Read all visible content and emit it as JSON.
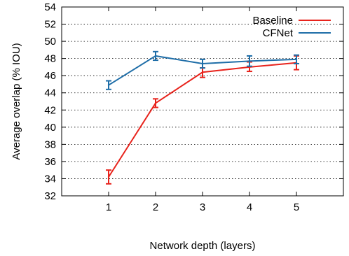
{
  "chart_data": {
    "type": "line",
    "title": "",
    "xlabel": "Network depth (layers)",
    "ylabel": "Average overlap (% IOU)",
    "x": [
      1,
      2,
      3,
      4,
      5
    ],
    "xlim": [
      0,
      6
    ],
    "ylim": [
      32,
      54
    ],
    "yticks": [
      32,
      34,
      36,
      38,
      40,
      42,
      44,
      46,
      48,
      50,
      52,
      54
    ],
    "xticks": [
      1,
      2,
      3,
      4,
      5
    ],
    "grid": "horizontal dotted",
    "legend_position": "top-right",
    "series": [
      {
        "name": "Baseline",
        "color": "#e8231c",
        "values": [
          34.2,
          42.8,
          46.4,
          47.0,
          47.5
        ],
        "error_low": [
          33.4,
          42.3,
          45.8,
          46.5,
          46.7
        ],
        "error_high": [
          35.0,
          43.3,
          46.9,
          47.6,
          48.3
        ]
      },
      {
        "name": "CFNet",
        "color": "#1f6ea8",
        "values": [
          44.9,
          48.3,
          47.4,
          47.7,
          47.9
        ],
        "error_low": [
          44.4,
          47.8,
          46.9,
          47.1,
          47.4
        ],
        "error_high": [
          45.4,
          48.8,
          47.9,
          48.3,
          48.4
        ]
      }
    ]
  }
}
